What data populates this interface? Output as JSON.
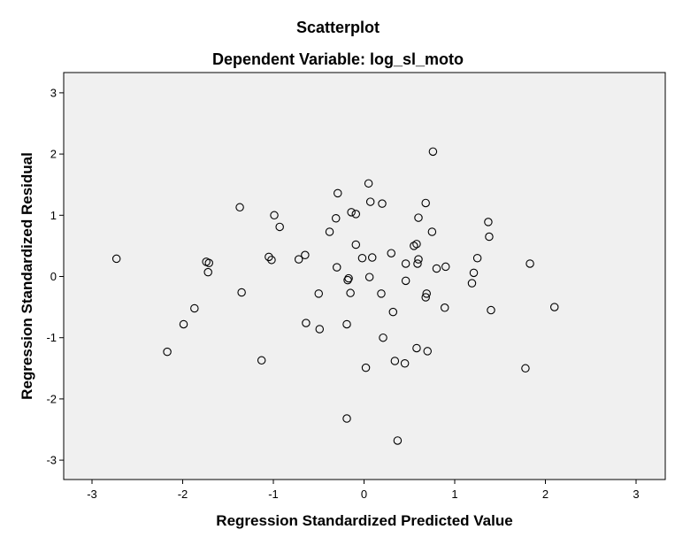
{
  "chart_data": {
    "type": "scatter",
    "title": "Scatterplot",
    "subtitle": "Dependent Variable: log_sl_moto",
    "xlabel": "Regression Standardized Predicted Value",
    "ylabel": "Regression Standardized Residual",
    "xlim": [
      -3.3,
      3.3
    ],
    "ylim": [
      -3.3,
      3.3
    ],
    "xticks": [
      -3,
      -2,
      -1,
      0,
      1,
      2,
      3
    ],
    "yticks": [
      -3,
      -2,
      -1,
      0,
      1,
      2,
      3
    ],
    "grid": false,
    "plot_background": "#f0f0f0",
    "marker": "open-circle",
    "points": [
      {
        "x": -2.73,
        "y": 0.29
      },
      {
        "x": -2.17,
        "y": -1.23
      },
      {
        "x": -1.99,
        "y": -0.78
      },
      {
        "x": -1.87,
        "y": -0.52
      },
      {
        "x": -1.74,
        "y": 0.24
      },
      {
        "x": -1.71,
        "y": 0.22
      },
      {
        "x": -1.72,
        "y": 0.07
      },
      {
        "x": -1.37,
        "y": 1.13
      },
      {
        "x": -1.35,
        "y": -0.26
      },
      {
        "x": -1.13,
        "y": -1.37
      },
      {
        "x": -1.05,
        "y": 0.32
      },
      {
        "x": -1.02,
        "y": 0.27
      },
      {
        "x": -0.99,
        "y": 1.0
      },
      {
        "x": -0.93,
        "y": 0.81
      },
      {
        "x": -0.72,
        "y": 0.28
      },
      {
        "x": -0.65,
        "y": 0.35
      },
      {
        "x": -0.64,
        "y": -0.76
      },
      {
        "x": -0.5,
        "y": -0.28
      },
      {
        "x": -0.49,
        "y": -0.86
      },
      {
        "x": -0.38,
        "y": 0.73
      },
      {
        "x": -0.31,
        "y": 0.95
      },
      {
        "x": -0.29,
        "y": 1.36
      },
      {
        "x": -0.3,
        "y": 0.15
      },
      {
        "x": -0.18,
        "y": -0.06
      },
      {
        "x": -0.17,
        "y": -0.03
      },
      {
        "x": -0.15,
        "y": -0.27
      },
      {
        "x": -0.19,
        "y": -0.78
      },
      {
        "x": -0.19,
        "y": -2.32
      },
      {
        "x": -0.14,
        "y": 1.05
      },
      {
        "x": -0.09,
        "y": 1.02
      },
      {
        "x": -0.09,
        "y": 0.52
      },
      {
        "x": -0.02,
        "y": 0.3
      },
      {
        "x": 0.02,
        "y": -1.49
      },
      {
        "x": 0.05,
        "y": 1.52
      },
      {
        "x": 0.06,
        "y": -0.01
      },
      {
        "x": 0.07,
        "y": 1.22
      },
      {
        "x": 0.09,
        "y": 0.31
      },
      {
        "x": 0.19,
        "y": -0.28
      },
      {
        "x": 0.2,
        "y": 1.19
      },
      {
        "x": 0.21,
        "y": -1.0
      },
      {
        "x": 0.3,
        "y": 0.38
      },
      {
        "x": 0.32,
        "y": -0.58
      },
      {
        "x": 0.34,
        "y": -1.38
      },
      {
        "x": 0.37,
        "y": -2.68
      },
      {
        "x": 0.45,
        "y": -1.42
      },
      {
        "x": 0.46,
        "y": -0.07
      },
      {
        "x": 0.46,
        "y": 0.21
      },
      {
        "x": 0.55,
        "y": 0.5
      },
      {
        "x": 0.58,
        "y": 0.53
      },
      {
        "x": 0.58,
        "y": -1.17
      },
      {
        "x": 0.59,
        "y": 0.21
      },
      {
        "x": 0.6,
        "y": 0.28
      },
      {
        "x": 0.6,
        "y": 0.96
      },
      {
        "x": 0.68,
        "y": -0.34
      },
      {
        "x": 0.68,
        "y": 1.2
      },
      {
        "x": 0.69,
        "y": -0.28
      },
      {
        "x": 0.7,
        "y": -1.22
      },
      {
        "x": 0.75,
        "y": 0.73
      },
      {
        "x": 0.76,
        "y": 2.04
      },
      {
        "x": 0.8,
        "y": 0.13
      },
      {
        "x": 0.89,
        "y": -0.51
      },
      {
        "x": 0.9,
        "y": 0.16
      },
      {
        "x": 1.19,
        "y": -0.11
      },
      {
        "x": 1.21,
        "y": 0.06
      },
      {
        "x": 1.25,
        "y": 0.3
      },
      {
        "x": 1.37,
        "y": 0.89
      },
      {
        "x": 1.38,
        "y": 0.65
      },
      {
        "x": 1.4,
        "y": -0.55
      },
      {
        "x": 1.78,
        "y": -1.5
      },
      {
        "x": 1.83,
        "y": 0.21
      },
      {
        "x": 2.1,
        "y": -0.5
      }
    ]
  }
}
